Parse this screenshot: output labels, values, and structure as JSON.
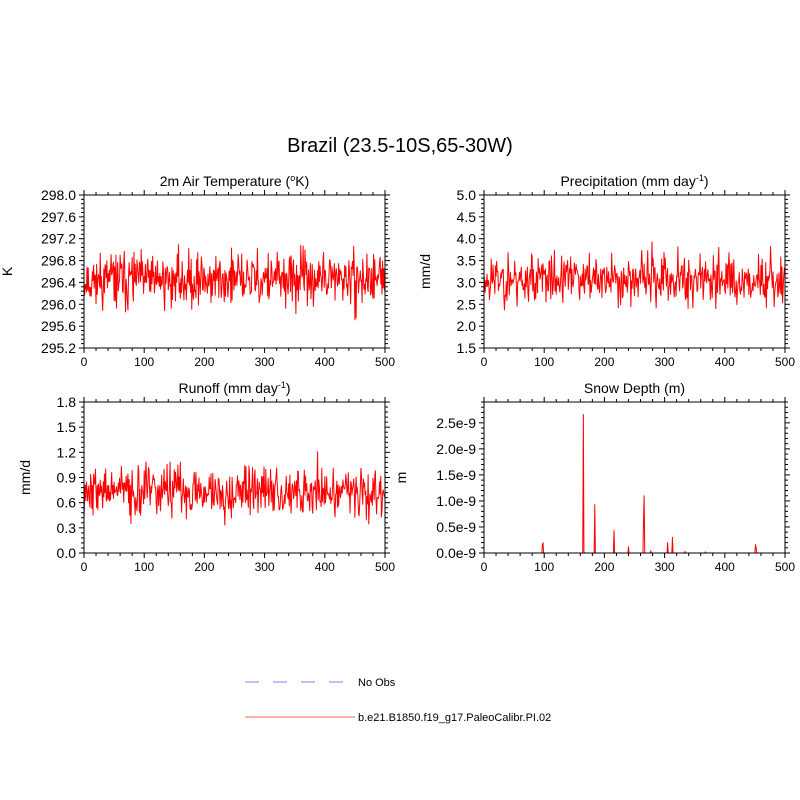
{
  "figure": {
    "title": "Brazil (23.5-10S,65-30W)"
  },
  "legend": {
    "entries": [
      {
        "label": "No Obs",
        "color": "#9999ff",
        "style": "dashed"
      },
      {
        "label": "b.e21.B1850.f19_g17.PaleoCalibr.PI.02",
        "color": "#ff9999",
        "style": "solid"
      }
    ]
  },
  "chart_data": [
    {
      "type": "line",
      "title": "2m Air Temperature (",
      "title_sup": "o",
      "title_end": "K)",
      "ylabel": "K",
      "xlabel": "",
      "xlim": [
        0,
        500
      ],
      "ylim": [
        295.2,
        298.0
      ],
      "xticks": [
        "0",
        "100",
        "200",
        "300",
        "400",
        "500"
      ],
      "yticks": [
        "295.2",
        "295.6",
        "296.0",
        "296.4",
        "296.8",
        "297.2",
        "297.6",
        "298.0"
      ],
      "series": [
        {
          "name": "b.e21.B1850.f19_g17.PaleoCalibr.PI.02",
          "color": "#ff0000",
          "generator": {
            "mean": 296.45,
            "std": 0.36,
            "min": 295.45,
            "max": 297.78,
            "seed": 11
          },
          "values": []
        }
      ]
    },
    {
      "type": "line",
      "title": "Precipitation (mm day",
      "title_sup": "-1",
      "title_end": ")",
      "ylabel": "mm/d",
      "xlabel": "",
      "xlim": [
        0,
        500
      ],
      "ylim": [
        1.5,
        5.0
      ],
      "xticks": [
        "0",
        "100",
        "200",
        "300",
        "400",
        "500"
      ],
      "yticks": [
        "1.5",
        "2.0",
        "2.5",
        "3.0",
        "3.5",
        "4.0",
        "4.5",
        "5.0"
      ],
      "series": [
        {
          "name": "b.e21.B1850.f19_g17.PaleoCalibr.PI.02",
          "color": "#ff0000",
          "generator": {
            "mean": 3.08,
            "std": 0.42,
            "min": 1.95,
            "max": 4.5,
            "seed": 23
          },
          "values": []
        }
      ]
    },
    {
      "type": "line",
      "title": "Runoff (mm day",
      "title_sup": "-1",
      "title_end": ")",
      "ylabel": "mm/d",
      "xlabel": "",
      "xlim": [
        0,
        500
      ],
      "ylim": [
        0.0,
        1.8
      ],
      "xticks": [
        "0",
        "100",
        "200",
        "300",
        "400",
        "500"
      ],
      "yticks": [
        "0.0",
        "0.3",
        "0.6",
        "0.9",
        "1.2",
        "1.5",
        "1.8"
      ],
      "series": [
        {
          "name": "b.e21.B1850.f19_g17.PaleoCalibr.PI.02",
          "color": "#ff0000",
          "generator": {
            "mean": 0.74,
            "std": 0.22,
            "min": 0.3,
            "max": 1.65,
            "seed": 37
          },
          "values": []
        }
      ]
    },
    {
      "type": "line",
      "title": "Snow Depth (m)",
      "title_sup": "",
      "title_end": "",
      "ylabel": "m",
      "xlabel": "",
      "xlim": [
        0,
        500
      ],
      "ylim": [
        0,
        2.9e-09
      ],
      "xticks": [
        "0",
        "100",
        "200",
        "300",
        "400",
        "500"
      ],
      "yticks": [
        "0.0e-9",
        "0.5e-9",
        "1.0e-9",
        "1.5e-9",
        "2.0e-9",
        "2.5e-9"
      ],
      "ytick_values": [
        0,
        5e-10,
        1e-09,
        1.5e-09,
        2e-09,
        2.5e-09
      ],
      "series": [
        {
          "name": "b.e21.B1850.f19_g17.PaleoCalibr.PI.02",
          "color": "#ff0000",
          "spikes": [
            [
              97,
              1.5e-10
            ],
            [
              98,
              2e-10
            ],
            [
              165,
              2.66e-09
            ],
            [
              166,
              3e-11
            ],
            [
              184,
              9.3e-10
            ],
            [
              216,
              4.3e-10
            ],
            [
              240,
              1.2e-10
            ],
            [
              265,
              6.5e-10
            ],
            [
              266,
              1.1e-09
            ],
            [
              277,
              4e-11
            ],
            [
              305,
              2e-10
            ],
            [
              313,
              3e-10
            ],
            [
              334,
              3e-11
            ],
            [
              368,
              2e-11
            ],
            [
              451,
              1.6e-10
            ],
            [
              452,
              1e-10
            ]
          ],
          "values": []
        }
      ]
    }
  ]
}
